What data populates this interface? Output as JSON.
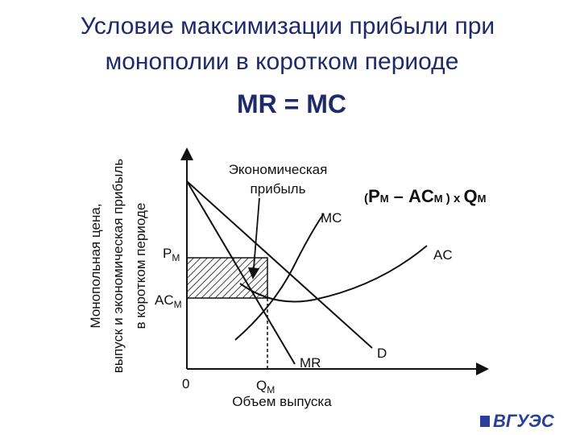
{
  "header": {
    "title_lines": [
      "Условие максимизации прибыли при",
      "монополии в коротком периоде"
    ],
    "condition": "MR = MC"
  },
  "formula": {
    "open": "(",
    "p": "P",
    "p_sub": "М",
    "minus_ac": " – AC",
    "ac_sub": "М",
    "close_x": " ) x ",
    "q": "Q",
    "q_sub": "М"
  },
  "diagram": {
    "y_axis_label": [
      "Монопольная цена,",
      "выпуск и экономическая прибыль",
      "в коротком периоде"
    ],
    "x_axis_label": "Объем выпуска",
    "origin": "0",
    "q_label": "Q",
    "q_sub": "M",
    "p_label": "P",
    "p_sub": "M",
    "ac_label": "AC",
    "ac_sub": "M",
    "profit_label": [
      "Экономическая",
      "прибыль"
    ],
    "curves": {
      "mc": "MC",
      "ac": "AC",
      "d": "D",
      "mr": "MR"
    }
  },
  "logo": "ВГУЭС"
}
